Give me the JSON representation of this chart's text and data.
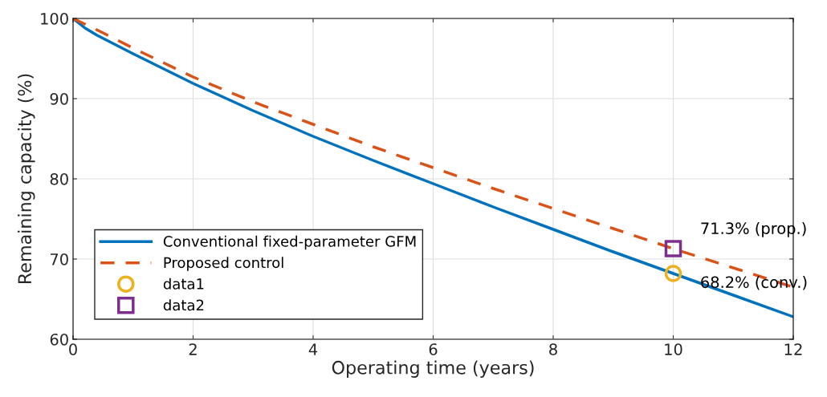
{
  "chart_data": {
    "type": "line",
    "xlabel": "Operating time (years)",
    "ylabel": "Remaining capacity (%)",
    "xlim": [
      0,
      12
    ],
    "xticks": [
      0,
      2,
      4,
      6,
      8,
      10,
      12
    ],
    "ylim": [
      60,
      100
    ],
    "yticks": [
      60,
      70,
      80,
      90,
      100
    ],
    "grid": true,
    "legend": "bottom left",
    "series": [
      {
        "name": "Conventional fixed-parameter GFM",
        "color": "#0072bd",
        "line_style": "solid",
        "marker": "none",
        "x": [
          0,
          0.2,
          0.4,
          1,
          2,
          3,
          4,
          5,
          6,
          7,
          8,
          9,
          10,
          11,
          12
        ],
        "values": [
          100,
          98.8,
          97.9,
          95.6,
          91.9,
          88.5,
          85.3,
          82.3,
          79.4,
          76.5,
          73.7,
          70.9,
          68.2,
          65.5,
          62.8
        ]
      },
      {
        "name": "Proposed control",
        "color": "#d95319",
        "line_style": "dashed",
        "marker": "none",
        "x": [
          0,
          0.5,
          1,
          2,
          3,
          4,
          5,
          6,
          7,
          8,
          9,
          10,
          11,
          12
        ],
        "values": [
          100,
          98.2,
          96.3,
          92.7,
          89.6,
          86.8,
          84.0,
          81.4,
          78.8,
          76.3,
          73.8,
          71.3,
          68.9,
          66.5
        ]
      },
      {
        "name": "data1",
        "type": "scatter",
        "color": "#edb120",
        "marker": "circle",
        "x": [
          10
        ],
        "values": [
          68.2
        ]
      },
      {
        "name": "data2",
        "type": "scatter",
        "color": "#7e2f8e",
        "marker": "square",
        "x": [
          10
        ],
        "values": [
          71.3
        ]
      }
    ],
    "annotations": [
      {
        "text": "71.3% (prop.)",
        "x": 10,
        "y": 71.3
      },
      {
        "text": "68.2% (conv.)",
        "x": 10,
        "y": 68.2
      }
    ]
  }
}
